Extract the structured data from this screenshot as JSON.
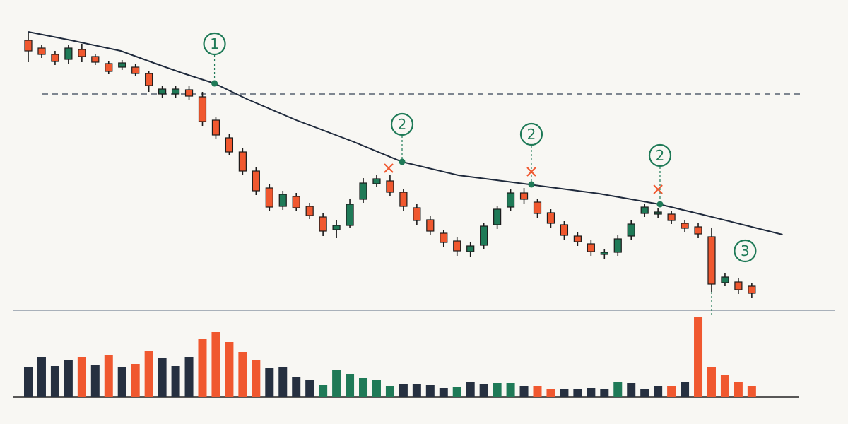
{
  "chart_data": {
    "type": "candlestick",
    "categories": [
      null,
      null,
      null,
      null,
      null,
      null,
      null,
      null,
      null,
      null,
      null,
      null,
      null,
      null,
      null,
      null,
      null,
      null,
      null,
      null,
      null,
      null,
      null,
      null,
      null,
      null,
      null,
      null,
      null,
      null,
      null,
      null,
      null,
      null,
      null,
      null,
      null,
      null,
      null,
      null,
      null,
      null,
      null,
      null,
      null,
      null,
      null,
      null,
      null,
      null,
      null,
      null,
      null,
      null,
      null
    ],
    "open": [
      383,
      372,
      363,
      356,
      370,
      360,
      350,
      345,
      345,
      336,
      307,
      307,
      313,
      303,
      270,
      245,
      225,
      198,
      174,
      148,
      162,
      148,
      133,
      115,
      121,
      158,
      180,
      184,
      168,
      146,
      129,
      110,
      99,
      84,
      93,
      122,
      147,
      167,
      154,
      139,
      122,
      106,
      95,
      80,
      83,
      106,
      138,
      137,
      137,
      124,
      119,
      105,
      40,
      41,
      35
    ],
    "high": [
      395,
      377,
      368,
      377,
      378,
      364,
      354,
      355,
      349,
      340,
      318,
      318,
      318,
      310,
      275,
      250,
      230,
      203,
      179,
      170,
      167,
      153,
      138,
      128,
      158,
      188,
      192,
      192,
      173,
      151,
      134,
      115,
      104,
      97,
      125,
      149,
      172,
      174,
      159,
      144,
      127,
      111,
      100,
      87,
      107,
      128,
      152,
      145,
      142,
      129,
      124,
      117,
      53,
      46,
      40
    ],
    "low": [
      352,
      358,
      348,
      350,
      352,
      348,
      335,
      341,
      332,
      310,
      302,
      302,
      299,
      262,
      243,
      220,
      192,
      164,
      141,
      143,
      141,
      130,
      106,
      103,
      117,
      153,
      175,
      162,
      142,
      122,
      107,
      91,
      78,
      77,
      88,
      116,
      141,
      152,
      132,
      118,
      101,
      92,
      78,
      73,
      78,
      100,
      133,
      131,
      123,
      111,
      103,
      27,
      35,
      24,
      18
    ],
    "close": [
      368,
      363,
      353,
      372,
      360,
      352,
      339,
      351,
      336,
      319,
      314,
      314,
      304,
      268,
      249,
      225,
      198,
      170,
      147,
      165,
      146,
      135,
      113,
      121,
      151,
      181,
      187,
      168,
      148,
      128,
      113,
      97,
      85,
      92,
      120,
      144,
      167,
      158,
      138,
      124,
      107,
      98,
      84,
      83,
      102,
      123,
      147,
      140,
      128,
      117,
      109,
      38,
      48,
      30,
      25
    ],
    "up_color": "#1f7a57",
    "down_color": "#f0582f",
    "xlim": [
      -2.11,
      61.18
    ],
    "ylim": [
      0,
      420
    ],
    "moving_average": {
      "color": "#1f2a3c",
      "x": [
        0,
        3.2,
        6.9,
        9.5,
        11.6,
        13.9,
        16.3,
        20.0,
        24.2,
        27.9,
        32.1,
        37.4,
        42.6,
        47.1,
        50.6,
        56.3
      ],
      "values": [
        395,
        383,
        368,
        350,
        336,
        322,
        300,
        270,
        240,
        211,
        192,
        179,
        166,
        151,
        135,
        108
      ]
    },
    "level": 307,
    "volume": [
      42,
      57,
      44,
      52,
      57,
      46,
      59,
      42,
      47,
      66,
      55,
      44,
      57,
      82,
      92,
      78,
      64,
      52,
      41,
      43,
      28,
      24,
      17,
      38,
      33,
      27,
      24,
      16,
      18,
      19,
      17,
      13,
      14,
      22,
      19,
      20,
      20,
      16,
      16,
      12,
      11,
      11,
      13,
      12,
      22,
      20,
      12,
      16,
      16,
      21,
      113,
      42,
      32,
      21,
      16
    ],
    "volume_colors": [
      "#263040",
      "#263040",
      "#263040",
      "#263040",
      "#f0582f",
      "#263040",
      "#f0582f",
      "#263040",
      "#f0582f",
      "#f0582f",
      "#263040",
      "#263040",
      "#263040",
      "#f0582f",
      "#f0582f",
      "#f0582f",
      "#f0582f",
      "#f0582f",
      "#263040",
      "#263040",
      "#263040",
      "#263040",
      "#1f7a57",
      "#1f7a57",
      "#1f7a57",
      "#1f7a57",
      "#1f7a57",
      "#1f7a57",
      "#263040",
      "#263040",
      "#263040",
      "#263040",
      "#1f7a57",
      "#263040",
      "#263040",
      "#1f7a57",
      "#1f7a57",
      "#263040",
      "#f0582f",
      "#f0582f",
      "#263040",
      "#263040",
      "#263040",
      "#263040",
      "#1f7a57",
      "#263040",
      "#263040",
      "#263040",
      "#f0582f",
      "#263040",
      "#f0582f",
      "#f0582f",
      "#f0582f",
      "#f0582f",
      "#f0582f"
    ],
    "vlim": [
      0,
      120
    ],
    "touch_points": {
      "x": [
        13.9,
        27.9,
        37.55,
        47.15
      ],
      "y": [
        322,
        211,
        179,
        151
      ]
    },
    "rejections": {
      "x": [
        26.9,
        37.55,
        47.0
      ],
      "y": [
        202,
        197,
        172
      ]
    },
    "annotations": [
      {
        "label": "1",
        "x": 13.9,
        "y": 378
      },
      {
        "label": "2",
        "x": 27.9,
        "y": 264
      },
      {
        "label": "2",
        "x": 37.55,
        "y": 250
      },
      {
        "label": "2",
        "x": 47.15,
        "y": 220
      },
      {
        "label": "3",
        "x": 53.5,
        "y": 85
      }
    ]
  }
}
